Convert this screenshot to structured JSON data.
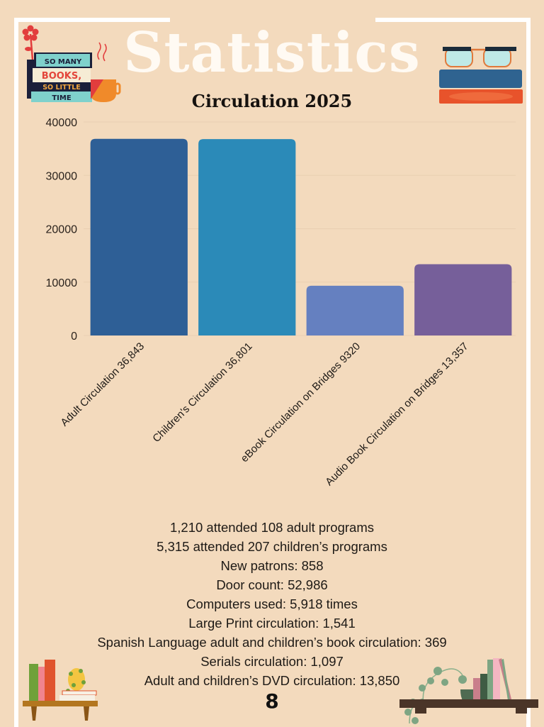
{
  "header": {
    "title": "Statistics",
    "subtitle": "Circulation 2025",
    "book_sign_lines": [
      "SO MANY",
      "BOOKS,",
      "SO LITTLE",
      "TIME"
    ]
  },
  "colors": {
    "background": "#f3dabd",
    "frame": "#ffffff",
    "gridline": "#e9cfb2"
  },
  "chart_data": {
    "type": "bar",
    "title": "Circulation 2025",
    "xlabel": "",
    "ylabel": "",
    "ylim": [
      0,
      40000
    ],
    "yticks": [
      0,
      10000,
      20000,
      30000,
      40000
    ],
    "ytick_labels": [
      "0",
      "10000",
      "20000",
      "30000",
      "40000"
    ],
    "grid": true,
    "legend": "none",
    "categories": [
      "Adult Circulation 36,843",
      "Children's Circulation 36,801",
      "eBook Circulation on Bridges 9320",
      "Audio Book Circulation on Bridges 13,357"
    ],
    "values": [
      36843,
      36801,
      9320,
      13357
    ],
    "bar_colors": [
      "#2e5f96",
      "#2b8ab8",
      "#6580c0",
      "#765f9a"
    ]
  },
  "stats": [
    "1,210 attended 108 adult programs",
    "5,315 attended 207 children’s programs",
    "New patrons: 858",
    "Door count: 52,986",
    "Computers used: 5,918 times",
    "Large Print circulation: 1,541",
    "Spanish Language adult and children’s book circulation: 369",
    "Serials circulation: 1,097",
    "Adult and children’s DVD circulation: 13,850"
  ],
  "page_number": "8"
}
